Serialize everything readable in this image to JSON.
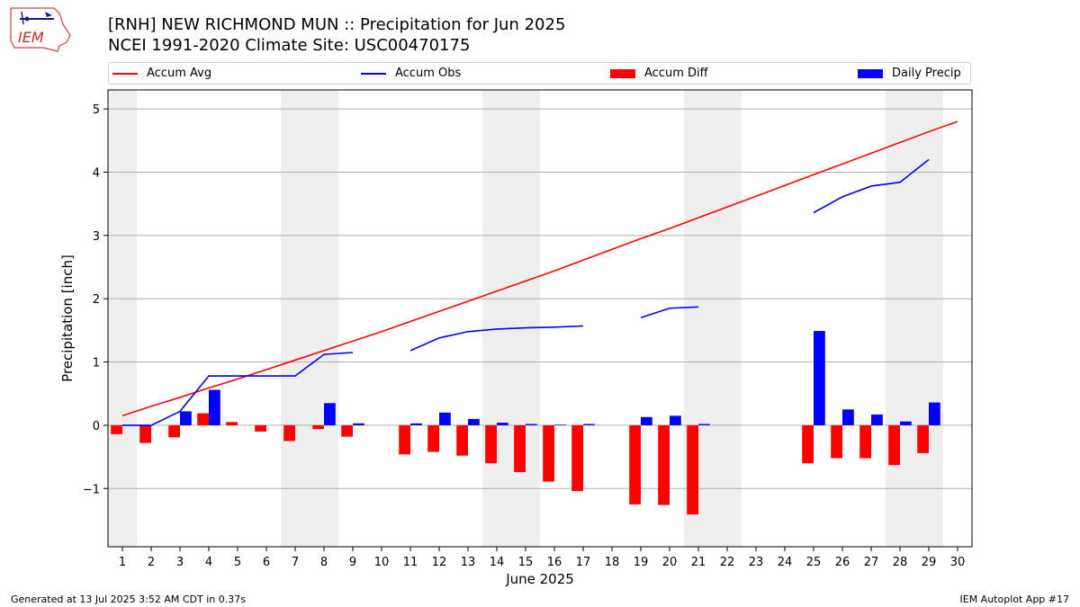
{
  "header": {
    "title_line1": "[RNH] NEW RICHMOND MUN :: Precipitation for Jun 2025",
    "title_line2": "NCEI 1991-2020 Climate Site: USC00470175",
    "logo_text": "IEM"
  },
  "footer": {
    "generated": "Generated at 13 Jul 2025 3:52 AM CDT in 0.37s",
    "app": "IEM Autoplot App #17"
  },
  "colors": {
    "accum_avg": "#ff0000",
    "accum_obs": "#0000ff",
    "accum_diff": "#ff0000",
    "daily_precip": "#0000ff",
    "weekend_band": "#eeeeee",
    "grid": "#b0b0b0"
  },
  "chart_data": {
    "type": "bar",
    "xlabel": "June 2025",
    "ylabel": "Precipitation [inch]",
    "xlim": [
      0.5,
      30.5
    ],
    "ylim": [
      -1.92,
      5.3
    ],
    "yticks": [
      -1,
      0,
      1,
      2,
      3,
      4,
      5
    ],
    "ytick_labels": [
      "−1",
      "0",
      "1",
      "2",
      "3",
      "4",
      "5"
    ],
    "x": [
      1,
      2,
      3,
      4,
      5,
      6,
      7,
      8,
      9,
      10,
      11,
      12,
      13,
      14,
      15,
      16,
      17,
      18,
      19,
      20,
      21,
      22,
      23,
      24,
      25,
      26,
      27,
      28,
      29,
      30
    ],
    "grid": true,
    "legend_position": "top",
    "weekend_days": [
      1,
      7,
      8,
      14,
      15,
      21,
      22,
      28,
      29
    ],
    "series": [
      {
        "name": "Accum Avg",
        "kind": "line",
        "values": [
          0.15,
          0.3,
          0.44,
          0.59,
          0.73,
          0.88,
          1.03,
          1.18,
          1.33,
          1.48,
          1.64,
          1.8,
          1.96,
          2.12,
          2.28,
          2.44,
          2.61,
          2.78,
          2.95,
          3.11,
          3.28,
          3.45,
          3.62,
          3.79,
          3.96,
          4.13,
          4.3,
          4.47,
          4.64,
          4.8
        ]
      },
      {
        "name": "Accum Obs",
        "kind": "line",
        "values": [
          0.0,
          0.0,
          0.22,
          0.78,
          0.78,
          0.78,
          0.78,
          1.12,
          1.15,
          null,
          1.18,
          1.38,
          1.48,
          1.52,
          1.54,
          1.55,
          1.57,
          null,
          1.7,
          1.85,
          1.87,
          null,
          null,
          null,
          3.36,
          3.61,
          3.78,
          3.84,
          4.2,
          null
        ]
      },
      {
        "name": "Accum Diff",
        "kind": "bar",
        "values": [
          -0.14,
          -0.28,
          -0.19,
          0.19,
          0.05,
          -0.1,
          -0.25,
          -0.06,
          -0.18,
          null,
          -0.46,
          -0.42,
          -0.48,
          -0.6,
          -0.74,
          -0.89,
          -1.04,
          null,
          -1.25,
          -1.26,
          -1.41,
          null,
          null,
          null,
          -0.6,
          -0.52,
          -0.52,
          -0.63,
          -0.44,
          null
        ]
      },
      {
        "name": "Daily Precip",
        "kind": "bar",
        "values": [
          0.0,
          0.0,
          0.22,
          0.56,
          0.0,
          0.0,
          0.0,
          0.35,
          0.03,
          null,
          0.03,
          0.2,
          0.1,
          0.04,
          0.02,
          0.01,
          0.02,
          null,
          0.13,
          0.15,
          0.02,
          null,
          null,
          null,
          1.49,
          0.25,
          0.17,
          0.06,
          0.36,
          null
        ]
      }
    ]
  }
}
